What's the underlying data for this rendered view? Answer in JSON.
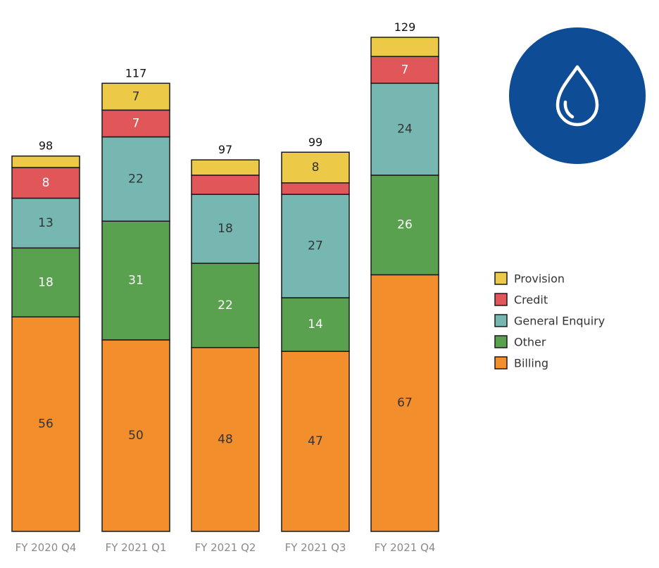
{
  "chart_data": {
    "type": "bar",
    "stacked": true,
    "categories": [
      "FY 2020 Q4",
      "FY 2021 Q1",
      "FY 2021 Q2",
      "FY 2021 Q3",
      "FY 2021 Q4"
    ],
    "totals": [
      "98",
      "117",
      "97",
      "99",
      "129"
    ],
    "series": [
      {
        "name": "Billing",
        "color": "#f28e2b",
        "label_color": "#333333",
        "values": [
          56,
          50,
          48,
          47,
          67
        ],
        "labels": [
          "56",
          "50",
          "48",
          "47",
          "67"
        ]
      },
      {
        "name": "Other",
        "color": "#59a14f",
        "label_color": "#ffffff",
        "values": [
          18,
          31,
          22,
          14,
          26
        ],
        "labels": [
          "18",
          "31",
          "22",
          "14",
          "26"
        ]
      },
      {
        "name": "General Enquiry",
        "color": "#76b7b2",
        "label_color": "#333333",
        "values": [
          13,
          22,
          18,
          27,
          24
        ],
        "labels": [
          "13",
          "22",
          "18",
          "27",
          "24"
        ]
      },
      {
        "name": "Credit",
        "color": "#e15759",
        "label_color": "#ffffff",
        "values": [
          8,
          7,
          5,
          3,
          7
        ],
        "labels": [
          "8",
          "7",
          "",
          "",
          "7"
        ]
      },
      {
        "name": "Provision",
        "color": "#edc948",
        "label_color": "#333333",
        "values": [
          3,
          7,
          4,
          8,
          5
        ],
        "labels": [
          "",
          "7",
          "",
          "8",
          ""
        ]
      }
    ],
    "legend_order": [
      "Provision",
      "Credit",
      "General Enquiry",
      "Other",
      "Billing"
    ],
    "legend_position": "right",
    "ylim": [
      0,
      129
    ],
    "grid": false,
    "icon": {
      "name": "water-drop-icon",
      "background": "#0f4c96"
    }
  }
}
